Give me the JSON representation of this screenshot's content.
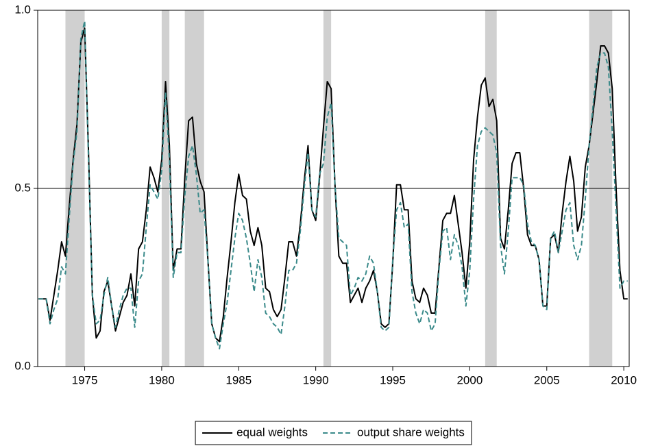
{
  "chart_data": {
    "type": "line",
    "x": [
      1972,
      1972.25,
      1972.5,
      1972.75,
      1973,
      1973.25,
      1973.5,
      1973.75,
      1974,
      1974.25,
      1974.5,
      1974.75,
      1975,
      1975.25,
      1975.5,
      1975.75,
      1976,
      1976.25,
      1976.5,
      1976.75,
      1977,
      1977.25,
      1977.5,
      1977.75,
      1978,
      1978.25,
      1978.5,
      1978.75,
      1979,
      1979.25,
      1979.5,
      1979.75,
      1980,
      1980.25,
      1980.5,
      1980.75,
      1981,
      1981.25,
      1981.5,
      1981.75,
      1982,
      1982.25,
      1982.5,
      1982.75,
      1983,
      1983.25,
      1983.5,
      1983.75,
      1984,
      1984.25,
      1984.5,
      1984.75,
      1985,
      1985.25,
      1985.5,
      1985.75,
      1986,
      1986.25,
      1986.5,
      1986.75,
      1987,
      1987.25,
      1987.5,
      1987.75,
      1988,
      1988.25,
      1988.5,
      1988.75,
      1989,
      1989.25,
      1989.5,
      1989.75,
      1990,
      1990.25,
      1990.5,
      1990.75,
      1991,
      1991.25,
      1991.5,
      1991.75,
      1992,
      1992.25,
      1992.5,
      1992.75,
      1993,
      1993.25,
      1993.5,
      1993.75,
      1994,
      1994.25,
      1994.5,
      1994.75,
      1995,
      1995.25,
      1995.5,
      1995.75,
      1996,
      1996.25,
      1996.5,
      1996.75,
      1997,
      1997.25,
      1997.5,
      1997.75,
      1998,
      1998.25,
      1998.5,
      1998.75,
      1999,
      1999.25,
      1999.5,
      1999.75,
      2000,
      2000.25,
      2000.5,
      2000.75,
      2001,
      2001.25,
      2001.5,
      2001.75,
      2002,
      2002.25,
      2002.5,
      2002.75,
      2003,
      2003.25,
      2003.5,
      2003.75,
      2004,
      2004.25,
      2004.5,
      2004.75,
      2005,
      2005.25,
      2005.5,
      2005.75,
      2006,
      2006.25,
      2006.5,
      2006.75,
      2007,
      2007.25,
      2007.5,
      2007.75,
      2008,
      2008.25,
      2008.5,
      2008.75,
      2009,
      2009.25,
      2009.5,
      2009.75,
      2010,
      2010.25
    ],
    "series": [
      {
        "name": "equal weights",
        "color": "#000000",
        "line_style": "solid",
        "values": [
          0.19,
          0.19,
          0.19,
          0.13,
          0.2,
          0.27,
          0.35,
          0.31,
          0.45,
          0.58,
          0.68,
          0.91,
          0.95,
          0.6,
          0.2,
          0.08,
          0.1,
          0.21,
          0.24,
          0.17,
          0.1,
          0.14,
          0.18,
          0.2,
          0.26,
          0.17,
          0.33,
          0.35,
          0.44,
          0.56,
          0.53,
          0.49,
          0.58,
          0.8,
          0.62,
          0.27,
          0.33,
          0.33,
          0.53,
          0.69,
          0.7,
          0.57,
          0.52,
          0.49,
          0.3,
          0.12,
          0.08,
          0.07,
          0.14,
          0.25,
          0.35,
          0.46,
          0.54,
          0.48,
          0.47,
          0.38,
          0.34,
          0.39,
          0.34,
          0.22,
          0.21,
          0.16,
          0.14,
          0.16,
          0.25,
          0.35,
          0.35,
          0.31,
          0.4,
          0.52,
          0.62,
          0.44,
          0.41,
          0.53,
          0.67,
          0.8,
          0.78,
          0.51,
          0.31,
          0.29,
          0.29,
          0.18,
          0.2,
          0.22,
          0.18,
          0.22,
          0.24,
          0.27,
          0.21,
          0.12,
          0.11,
          0.12,
          0.29,
          0.51,
          0.51,
          0.44,
          0.44,
          0.24,
          0.19,
          0.18,
          0.22,
          0.2,
          0.15,
          0.15,
          0.28,
          0.41,
          0.43,
          0.43,
          0.48,
          0.4,
          0.32,
          0.22,
          0.35,
          0.58,
          0.7,
          0.79,
          0.81,
          0.73,
          0.75,
          0.69,
          0.36,
          0.33,
          0.44,
          0.57,
          0.6,
          0.6,
          0.5,
          0.37,
          0.34,
          0.34,
          0.3,
          0.17,
          0.17,
          0.36,
          0.37,
          0.32,
          0.43,
          0.52,
          0.59,
          0.52,
          0.38,
          0.42,
          0.56,
          0.62,
          0.71,
          0.8,
          0.9,
          0.9,
          0.88,
          0.78,
          0.5,
          0.27,
          0.19,
          0.19
        ]
      },
      {
        "name": "output share weights",
        "color": "#3a8a8a",
        "line_style": "dashed",
        "values": [
          0.19,
          0.19,
          0.19,
          0.12,
          0.16,
          0.19,
          0.28,
          0.26,
          0.42,
          0.57,
          0.66,
          0.92,
          0.97,
          0.58,
          0.2,
          0.12,
          0.13,
          0.2,
          0.25,
          0.17,
          0.11,
          0.16,
          0.2,
          0.22,
          0.22,
          0.11,
          0.24,
          0.26,
          0.39,
          0.51,
          0.49,
          0.47,
          0.55,
          0.77,
          0.58,
          0.25,
          0.32,
          0.32,
          0.48,
          0.59,
          0.62,
          0.54,
          0.43,
          0.44,
          0.3,
          0.12,
          0.08,
          0.05,
          0.12,
          0.18,
          0.27,
          0.36,
          0.43,
          0.41,
          0.36,
          0.29,
          0.21,
          0.3,
          0.25,
          0.15,
          0.14,
          0.12,
          0.11,
          0.09,
          0.17,
          0.27,
          0.27,
          0.29,
          0.38,
          0.5,
          0.6,
          0.44,
          0.42,
          0.54,
          0.57,
          0.7,
          0.74,
          0.51,
          0.36,
          0.35,
          0.34,
          0.2,
          0.22,
          0.25,
          0.24,
          0.26,
          0.31,
          0.29,
          0.21,
          0.11,
          0.1,
          0.11,
          0.3,
          0.44,
          0.46,
          0.39,
          0.4,
          0.21,
          0.15,
          0.12,
          0.16,
          0.15,
          0.1,
          0.12,
          0.27,
          0.38,
          0.39,
          0.3,
          0.37,
          0.34,
          0.28,
          0.17,
          0.27,
          0.47,
          0.62,
          0.66,
          0.67,
          0.66,
          0.65,
          0.6,
          0.34,
          0.26,
          0.38,
          0.53,
          0.53,
          0.53,
          0.51,
          0.4,
          0.35,
          0.34,
          0.3,
          0.17,
          0.16,
          0.36,
          0.38,
          0.32,
          0.38,
          0.44,
          0.46,
          0.34,
          0.3,
          0.34,
          0.47,
          0.62,
          0.73,
          0.84,
          0.88,
          0.88,
          0.84,
          0.66,
          0.44,
          0.22,
          0.24,
          0.24
        ]
      }
    ],
    "xlim": [
      1971.95,
      2010.35
    ],
    "xticks": [
      1975,
      1980,
      1985,
      1990,
      1995,
      2000,
      2005,
      2010
    ],
    "ylim": [
      0,
      1
    ],
    "yticks": [
      {
        "value": 0,
        "label": "0.0"
      },
      0.5,
      {
        "value": 1,
        "label": "1.0"
      }
    ],
    "reference_line": 0.5,
    "shaded_periods": [
      [
        1973.75,
        1975.0
      ],
      [
        1980.0,
        1980.5
      ],
      [
        1981.5,
        1982.75
      ],
      [
        1990.5,
        1991.0
      ],
      [
        2001.0,
        2001.75
      ],
      [
        2007.75,
        2009.25
      ]
    ],
    "shade_color": "#d0d0d0",
    "legend": "bottom"
  }
}
